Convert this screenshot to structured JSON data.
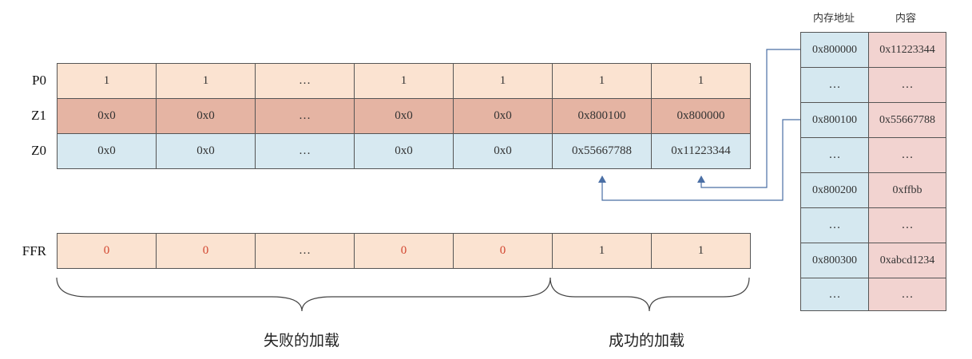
{
  "registers": {
    "p0": {
      "label": "P0",
      "cells": [
        "1",
        "1",
        "…",
        "1",
        "1",
        "1",
        "1"
      ]
    },
    "z1": {
      "label": "Z1",
      "cells": [
        "0x0",
        "0x0",
        "…",
        "0x0",
        "0x0",
        "0x800100",
        "0x800000"
      ]
    },
    "z0": {
      "label": "Z0",
      "cells": [
        "0x0",
        "0x0",
        "…",
        "0x0",
        "0x0",
        "0x55667788",
        "0x11223344"
      ]
    },
    "ffr": {
      "label": "FFR",
      "cells": [
        "0",
        "0",
        "…",
        "0",
        "0",
        "1",
        "1"
      ]
    }
  },
  "memory": {
    "header_address": "内存地址",
    "header_content": "内容",
    "rows": [
      {
        "addr": "0x800000",
        "val": "0x11223344"
      },
      {
        "addr": "…",
        "val": "…"
      },
      {
        "addr": "0x800100",
        "val": "0x55667788"
      },
      {
        "addr": "…",
        "val": "…"
      },
      {
        "addr": "0x800200",
        "val": "0xffbb"
      },
      {
        "addr": "…",
        "val": "…"
      },
      {
        "addr": "0x800300",
        "val": "0xabcd1234"
      },
      {
        "addr": "…",
        "val": "…"
      }
    ]
  },
  "captions": {
    "failed": "失败的加载",
    "success": "成功的加载"
  },
  "colors": {
    "p0": "#fbe3d1",
    "z1": "#e5b4a3",
    "z0": "#d7e9f1",
    "ffr_zero_text": "#d2452f",
    "arrow": "#4a6fa5",
    "mem_addr": "#d5e8f0",
    "mem_val": "#f2d3d0"
  }
}
